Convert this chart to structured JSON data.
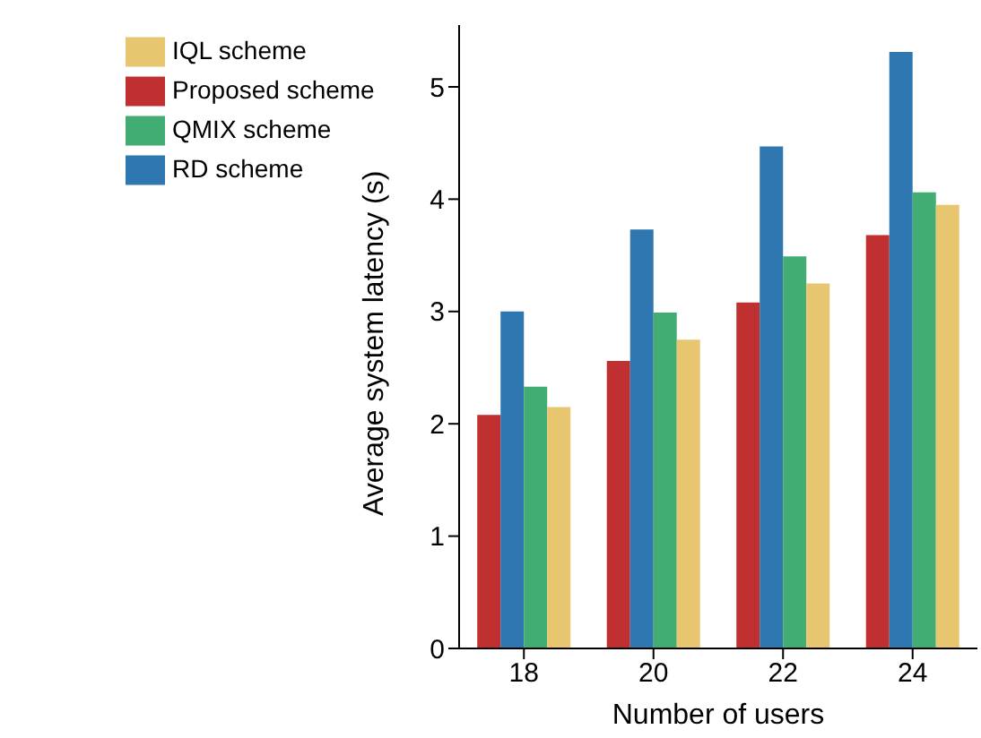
{
  "chart_data": {
    "type": "bar",
    "xlabel": "Number of users",
    "ylabel": "Average system latency (s)",
    "categories": [
      "18",
      "20",
      "22",
      "24"
    ],
    "series": [
      {
        "name": "Proposed scheme",
        "color": "#c03030",
        "values": [
          2.08,
          2.56,
          3.08,
          3.68
        ]
      },
      {
        "name": "RD scheme",
        "color": "#2e77b0",
        "values": [
          3.0,
          3.73,
          4.47,
          5.31
        ]
      },
      {
        "name": "QMIX scheme",
        "color": "#42ad73",
        "values": [
          2.33,
          2.99,
          3.49,
          4.06
        ]
      },
      {
        "name": "IQL scheme",
        "color": "#e8c670",
        "values": [
          2.15,
          2.75,
          3.25,
          3.95
        ]
      }
    ],
    "ylim": [
      0,
      5.55
    ],
    "yticks": [
      0,
      1,
      2,
      3,
      4,
      5
    ],
    "legend": "top left",
    "grid": false
  }
}
